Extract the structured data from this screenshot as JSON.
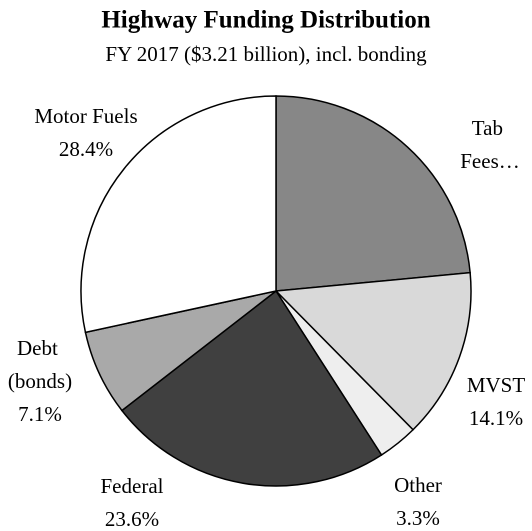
{
  "chart_data": {
    "type": "pie",
    "title": "Highway Funding Distribution",
    "subtitle": "FY 2017 ($3.21 billion), incl. bonding",
    "categories": [
      "Tab Fees…",
      "MVST",
      "Other",
      "Federal",
      "Debt (bonds)",
      "Motor Fuels"
    ],
    "values": [
      23.5,
      14.1,
      3.3,
      23.6,
      7.1,
      28.4
    ],
    "value_labels": [
      null,
      "14.1%",
      "3.3%",
      "23.6%",
      "7.1%",
      "28.4%"
    ],
    "colors": [
      "#878787",
      "#d9d9d9",
      "#eeeeee",
      "#404040",
      "#a9a9a9",
      "#ffffff"
    ]
  }
}
